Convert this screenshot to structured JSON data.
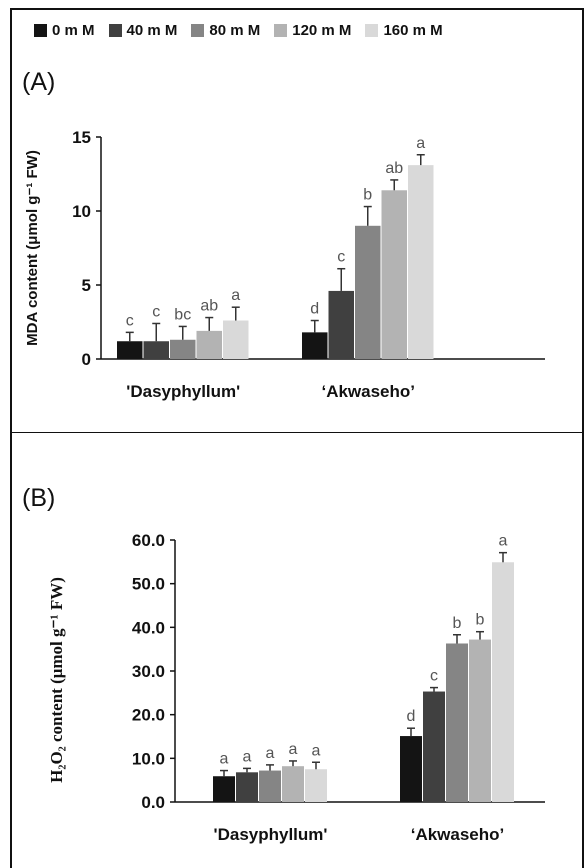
{
  "legend": [
    {
      "label": "0 m M",
      "color": "#141414"
    },
    {
      "label": "40 m M",
      "color": "#404040"
    },
    {
      "label": "80 m M",
      "color": "#858585"
    },
    {
      "label": "120 m M",
      "color": "#b3b3b3"
    },
    {
      "label": "160 m M",
      "color": "#d9d9d9"
    }
  ],
  "chart_data": [
    {
      "type": "bar",
      "panel": "(A)",
      "title": "",
      "ylabel": "MDA content (μmol g⁻¹ FW)",
      "ylim": [
        0,
        15
      ],
      "yticks": [
        "0",
        "5",
        "10",
        "15"
      ],
      "categories": [
        "'Dasyphyllum'",
        "‘Akwaseho’"
      ],
      "series": [
        {
          "name": "0 m M",
          "values": [
            1.2,
            1.8
          ],
          "errors": [
            0.6,
            0.8
          ],
          "letters": [
            "c",
            "d"
          ]
        },
        {
          "name": "40 m M",
          "values": [
            1.2,
            4.6
          ],
          "errors": [
            1.2,
            1.5
          ],
          "letters": [
            "c",
            "c"
          ]
        },
        {
          "name": "80 m M",
          "values": [
            1.3,
            9.0
          ],
          "errors": [
            0.9,
            1.3
          ],
          "letters": [
            "bc",
            "b"
          ]
        },
        {
          "name": "120 m M",
          "values": [
            1.9,
            11.4
          ],
          "errors": [
            0.9,
            0.7
          ],
          "letters": [
            "ab",
            "ab"
          ]
        },
        {
          "name": "160 m M",
          "values": [
            2.6,
            13.1
          ],
          "errors": [
            0.9,
            0.7
          ],
          "letters": [
            "a",
            "a"
          ]
        }
      ]
    },
    {
      "type": "bar",
      "panel": "(B)",
      "title": "",
      "ylabel": "H₂O₂ content (μmol g⁻¹ FW)",
      "ylim": [
        0,
        60
      ],
      "yticks": [
        "0.0",
        "10.0",
        "20.0",
        "30.0",
        "40.0",
        "50.0",
        "60.0"
      ],
      "categories": [
        "'Dasyphyllum'",
        "‘Akwaseho’"
      ],
      "series": [
        {
          "name": "0 m M",
          "values": [
            5.9,
            15.1
          ],
          "errors": [
            1.3,
            1.8
          ],
          "letters": [
            "a",
            "d"
          ]
        },
        {
          "name": "40 m M",
          "values": [
            6.8,
            25.3
          ],
          "errors": [
            0.9,
            0.9
          ],
          "letters": [
            "a",
            "c"
          ]
        },
        {
          "name": "80 m M",
          "values": [
            7.2,
            36.3
          ],
          "errors": [
            1.3,
            2.0
          ],
          "letters": [
            "a",
            "b"
          ]
        },
        {
          "name": "120 m M",
          "values": [
            8.2,
            37.2
          ],
          "errors": [
            1.2,
            1.8
          ],
          "letters": [
            "a",
            "b"
          ]
        },
        {
          "name": "160 m M",
          "values": [
            7.5,
            54.9
          ],
          "errors": [
            1.6,
            2.2
          ],
          "letters": [
            "a",
            "a"
          ]
        }
      ]
    }
  ]
}
